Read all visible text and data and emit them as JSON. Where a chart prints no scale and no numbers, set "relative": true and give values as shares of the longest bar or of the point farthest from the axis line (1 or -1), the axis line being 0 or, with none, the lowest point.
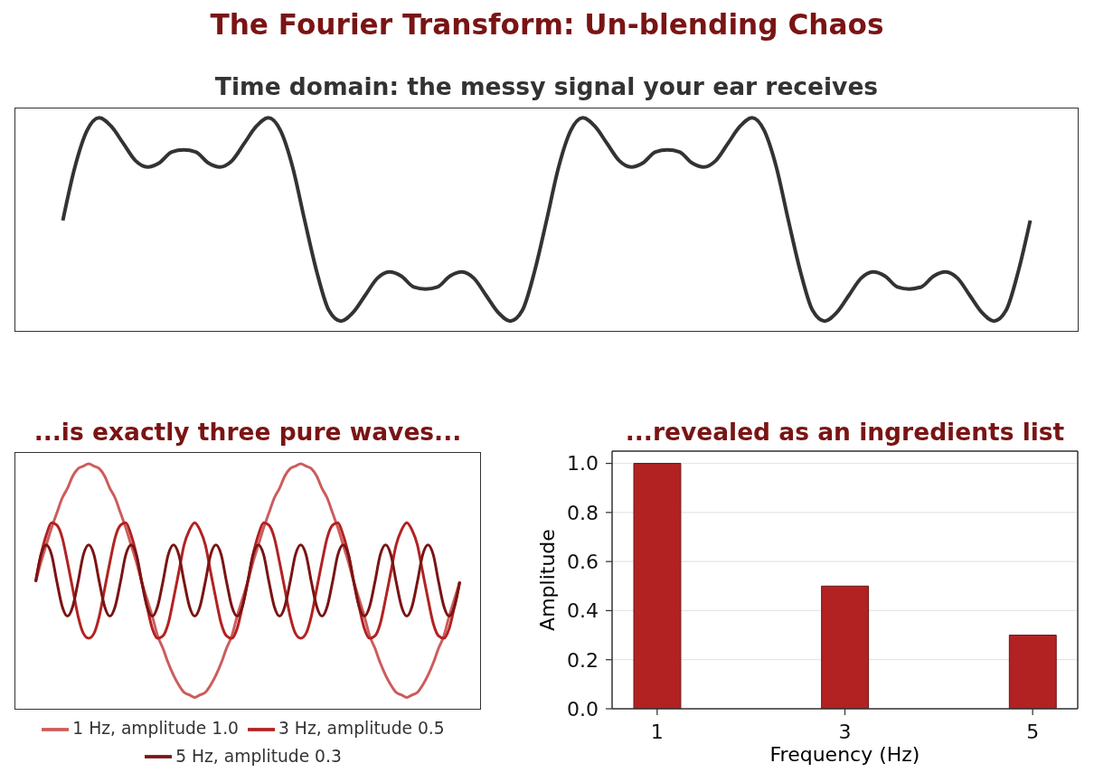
{
  "chart_data": [
    {
      "type": "line",
      "title": "The Fourier Transform: Un-blending Chaos",
      "subtitle": "Time domain: the messy signal your ear receives",
      "relative": true,
      "categories": [
        null,
        null,
        null,
        null,
        null,
        null,
        null,
        null,
        null,
        null,
        null,
        null,
        null,
        null,
        null,
        null,
        null,
        null,
        null,
        null,
        null,
        null,
        null,
        null,
        null,
        null,
        null,
        null,
        null,
        null,
        null,
        null,
        null,
        null,
        null,
        null,
        null,
        null,
        null,
        null,
        null,
        null,
        null,
        null,
        null,
        null,
        null,
        null,
        null,
        null,
        null,
        null,
        null,
        null,
        null,
        null,
        null,
        null,
        null,
        null,
        null,
        null,
        null,
        null,
        null,
        null,
        null,
        null,
        null,
        null,
        null,
        null,
        null,
        null,
        null,
        null,
        null,
        null,
        null,
        null,
        null
      ],
      "series": [
        {
          "color": "#333333",
          "values": [
            0.52,
            0.77,
            0.94,
            1,
            0.96,
            0.88,
            0.8,
            0.77,
            0.79,
            0.84,
            0.85,
            0.84,
            0.79,
            0.77,
            0.8,
            0.88,
            0.96,
            1,
            0.94,
            0.77,
            0.52,
            0.28,
            0.1,
            0.05,
            0.09,
            0.17,
            0.25,
            0.28,
            0.26,
            0.21,
            0.2,
            0.21,
            0.26,
            0.28,
            0.25,
            0.17,
            0.09,
            0.05,
            0.1,
            0.28,
            0.52,
            0.77,
            0.94,
            1,
            0.96,
            0.88,
            0.8,
            0.77,
            0.79,
            0.84,
            0.85,
            0.84,
            0.79,
            0.77,
            0.8,
            0.88,
            0.96,
            1,
            0.94,
            0.77,
            0.52,
            0.28,
            0.1,
            0.05,
            0.09,
            0.17,
            0.25,
            0.28,
            0.26,
            0.21,
            0.2,
            0.21,
            0.26,
            0.28,
            0.25,
            0.17,
            0.09,
            0.05,
            0.1,
            0.28,
            0.52
          ]
        }
      ]
    },
    {
      "type": "line",
      "title": "...is exactly three pure waves...",
      "relative": true,
      "legend": "bottom",
      "categories": [
        null,
        null,
        null,
        null,
        null,
        null,
        null,
        null,
        null,
        null,
        null,
        null,
        null,
        null,
        null,
        null,
        null,
        null,
        null,
        null,
        null,
        null,
        null,
        null,
        null,
        null,
        null,
        null,
        null,
        null,
        null,
        null,
        null,
        null,
        null,
        null,
        null,
        null,
        null,
        null,
        null,
        null,
        null,
        null,
        null,
        null,
        null,
        null,
        null,
        null,
        null,
        null,
        null,
        null,
        null,
        null,
        null,
        null,
        null,
        null,
        null,
        null,
        null,
        null,
        null,
        null,
        null,
        null,
        null,
        null,
        null,
        null,
        null,
        null,
        null,
        null,
        null,
        null,
        null,
        null,
        null
      ],
      "series": [
        {
          "name": "1 Hz, amplitude 1.0",
          "color": "#cd5c5c",
          "values": [
            0.52,
            0.6,
            0.67,
            0.74,
            0.8,
            0.86,
            0.9,
            0.95,
            0.98,
            0.99,
            1,
            0.99,
            0.98,
            0.95,
            0.9,
            0.86,
            0.8,
            0.74,
            0.67,
            0.6,
            0.52,
            0.45,
            0.38,
            0.3,
            0.25,
            0.19,
            0.14,
            0.1,
            0.07,
            0.06,
            0.05,
            0.06,
            0.07,
            0.1,
            0.14,
            0.19,
            0.25,
            0.3,
            0.38,
            0.45,
            0.52,
            0.6,
            0.67,
            0.74,
            0.8,
            0.86,
            0.9,
            0.95,
            0.98,
            0.99,
            1,
            0.99,
            0.98,
            0.95,
            0.9,
            0.86,
            0.8,
            0.74,
            0.67,
            0.6,
            0.52,
            0.45,
            0.38,
            0.3,
            0.25,
            0.19,
            0.14,
            0.1,
            0.07,
            0.06,
            0.05,
            0.06,
            0.07,
            0.1,
            0.14,
            0.19,
            0.25,
            0.3,
            0.38,
            0.45,
            0.52
          ]
        },
        {
          "name": "3 Hz, amplitude 0.5",
          "color": "#b22222",
          "values": [
            0.52,
            0.63,
            0.71,
            0.76,
            0.75,
            0.7,
            0.6,
            0.49,
            0.38,
            0.31,
            0.29,
            0.31,
            0.38,
            0.49,
            0.6,
            0.7,
            0.75,
            0.76,
            0.71,
            0.63,
            0.52,
            0.42,
            0.33,
            0.29,
            0.3,
            0.35,
            0.45,
            0.56,
            0.67,
            0.73,
            0.76,
            0.73,
            0.67,
            0.56,
            0.45,
            0.35,
            0.3,
            0.29,
            0.33,
            0.42,
            0.52,
            0.63,
            0.71,
            0.76,
            0.75,
            0.7,
            0.6,
            0.49,
            0.38,
            0.31,
            0.29,
            0.31,
            0.38,
            0.49,
            0.6,
            0.7,
            0.75,
            0.76,
            0.71,
            0.63,
            0.52,
            0.42,
            0.33,
            0.29,
            0.3,
            0.35,
            0.45,
            0.56,
            0.67,
            0.73,
            0.76,
            0.73,
            0.67,
            0.56,
            0.45,
            0.35,
            0.3,
            0.29,
            0.33,
            0.42,
            0.52
          ]
        },
        {
          "name": "5 Hz, amplitude 0.3",
          "color": "#7a1414",
          "values": [
            0.52,
            0.63,
            0.67,
            0.63,
            0.52,
            0.42,
            0.38,
            0.42,
            0.52,
            0.63,
            0.67,
            0.63,
            0.52,
            0.42,
            0.38,
            0.42,
            0.52,
            0.63,
            0.67,
            0.63,
            0.52,
            0.42,
            0.38,
            0.42,
            0.52,
            0.63,
            0.67,
            0.63,
            0.52,
            0.42,
            0.38,
            0.42,
            0.52,
            0.63,
            0.67,
            0.63,
            0.52,
            0.42,
            0.38,
            0.42,
            0.52,
            0.63,
            0.67,
            0.63,
            0.52,
            0.42,
            0.38,
            0.42,
            0.52,
            0.63,
            0.67,
            0.63,
            0.52,
            0.42,
            0.38,
            0.42,
            0.52,
            0.63,
            0.67,
            0.63,
            0.52,
            0.42,
            0.38,
            0.42,
            0.52,
            0.63,
            0.67,
            0.63,
            0.52,
            0.42,
            0.38,
            0.42,
            0.52,
            0.63,
            0.67,
            0.63,
            0.52,
            0.42,
            0.38,
            0.42,
            0.52
          ]
        }
      ]
    },
    {
      "type": "bar",
      "title": "...revealed as an ingredients list",
      "xlabel": "Frequency (Hz)",
      "ylabel": "Amplitude",
      "x": [
        1,
        3,
        5
      ],
      "values": [
        1.0,
        0.5,
        0.3
      ],
      "color": "#b22222",
      "xlim": [
        0.52,
        5.48
      ],
      "xticks": [
        1,
        3,
        5
      ],
      "ylim": [
        0,
        1.05
      ],
      "yticks": [
        {
          "value": 0,
          "label": "0.0"
        },
        0.2,
        0.4,
        0.6,
        0.8,
        {
          "value": 1,
          "label": "1.0"
        }
      ],
      "grid": "y"
    }
  ]
}
